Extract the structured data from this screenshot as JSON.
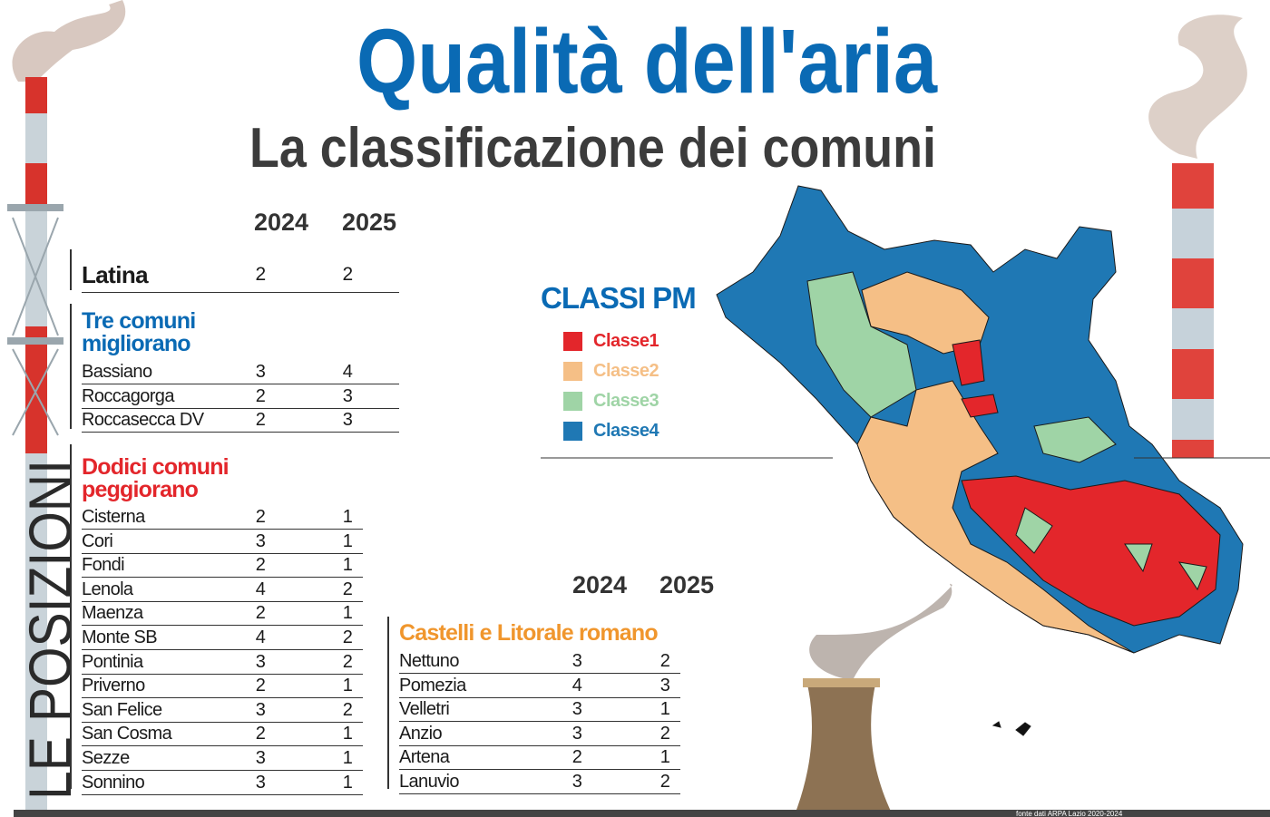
{
  "header": {
    "title": "Qualità dell'aria",
    "subtitle": "La classificazione dei comuni"
  },
  "side_label": "LE POSIZIONI",
  "table_left": {
    "columns": [
      "2024",
      "2025"
    ],
    "highlight": {
      "name": "Latina",
      "values": [
        2,
        2
      ]
    },
    "groups": [
      {
        "title": "Tre comuni migliorano",
        "color": "#0a6ab4",
        "rows": [
          [
            "Bassiano",
            3,
            4
          ],
          [
            "Roccagorga",
            2,
            3
          ],
          [
            "Roccasecca DV",
            2,
            3
          ]
        ]
      },
      {
        "title": "Dodici comuni peggiorano",
        "color": "#e3262b",
        "rows": [
          [
            "Cisterna",
            2,
            1
          ],
          [
            "Cori",
            3,
            1
          ],
          [
            "Fondi",
            2,
            1
          ],
          [
            "Lenola",
            4,
            2
          ],
          [
            "Maenza",
            2,
            1
          ],
          [
            "Monte SB",
            4,
            2
          ],
          [
            "Pontinia",
            3,
            2
          ],
          [
            "Priverno",
            2,
            1
          ],
          [
            "San Felice",
            3,
            2
          ],
          [
            "San Cosma",
            2,
            1
          ],
          [
            "Sezze",
            3,
            1
          ],
          [
            "Sonnino",
            3,
            1
          ]
        ]
      }
    ]
  },
  "legend": {
    "title": "CLASSI PM",
    "items": [
      {
        "label": "Classe1",
        "color": "#e3262b"
      },
      {
        "label": "Classe2",
        "color": "#f5bf86"
      },
      {
        "label": "Classe3",
        "color": "#9fd4a6"
      },
      {
        "label": "Classe4",
        "color": "#1f78b4"
      }
    ]
  },
  "table_right": {
    "columns": [
      "2024",
      "2025"
    ],
    "title": "Castelli e Litorale romano",
    "color": "#f0962d",
    "rows": [
      [
        "Nettuno",
        3,
        2
      ],
      [
        "Pomezia",
        4,
        3
      ],
      [
        "Velletri",
        3,
        1
      ],
      [
        "Anzio",
        3,
        2
      ],
      [
        "Artena",
        2,
        1
      ],
      [
        "Lanuvio",
        3,
        2
      ]
    ]
  },
  "source": "fonte dati ARPA Lazio 2020-2024"
}
